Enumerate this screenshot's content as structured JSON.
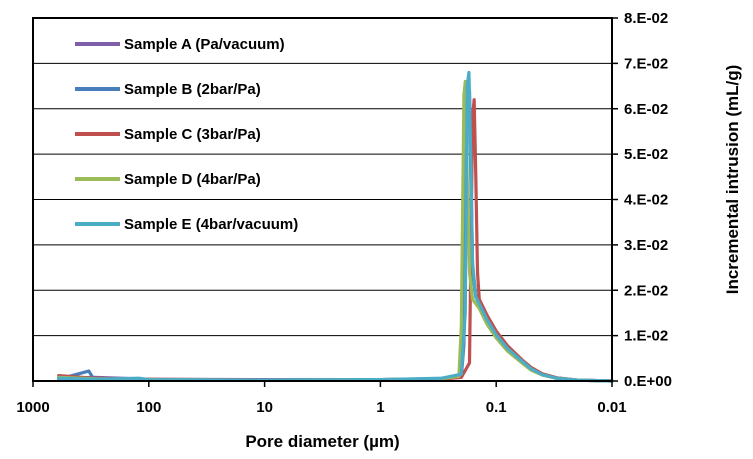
{
  "chart_data": {
    "type": "line",
    "title": "",
    "xlabel": "Pore diameter (µm)",
    "ylabel": "Incremental intrusion (mL/g)",
    "x_scale": "log",
    "x_reversed": true,
    "xlim": [
      1000,
      0.01
    ],
    "ylim": [
      0,
      0.08
    ],
    "x_ticks": [
      1000,
      100,
      10,
      1,
      0.1,
      0.01
    ],
    "x_tick_labels": [
      "1000",
      "100",
      "10",
      "1",
      "0.1",
      "0.01"
    ],
    "y_ticks": [
      0,
      0.01,
      0.02,
      0.03,
      0.04,
      0.05,
      0.06,
      0.07,
      0.08
    ],
    "y_tick_labels": [
      "0.E+00",
      "1.E-02",
      "2.E-02",
      "3.E-02",
      "4.E-02",
      "5.E-02",
      "6.E-02",
      "7.E-02",
      "8.E-02"
    ],
    "y_axis_side": "right",
    "grid": true,
    "legend_position": "top-left",
    "series": [
      {
        "name": "Sample A (Pa/vacuum)",
        "color": "#7f5fa8",
        "points": [
          [
            600,
            0.0005
          ],
          [
            300,
            0.0008
          ],
          [
            100,
            0.0004
          ],
          [
            10,
            0.0003
          ],
          [
            1,
            0.0003
          ],
          [
            0.3,
            0.0005
          ],
          [
            0.2,
            0.001
          ],
          [
            0.19,
            0.008
          ],
          [
            0.18,
            0.06
          ],
          [
            0.17,
            0.064
          ],
          [
            0.165,
            0.045
          ],
          [
            0.16,
            0.025
          ],
          [
            0.15,
            0.019
          ],
          [
            0.14,
            0.0175
          ],
          [
            0.12,
            0.014
          ],
          [
            0.1,
            0.0105
          ],
          [
            0.08,
            0.0075
          ],
          [
            0.06,
            0.0045
          ],
          [
            0.05,
            0.0028
          ],
          [
            0.04,
            0.0015
          ],
          [
            0.03,
            0.0007
          ],
          [
            0.02,
            0.0002
          ],
          [
            0.01,
            0.0
          ]
        ]
      },
      {
        "name": "Sample B (2bar/Pa)",
        "color": "#4a7ebb",
        "points": [
          [
            600,
            0.0004
          ],
          [
            330,
            0.0022
          ],
          [
            300,
            0.0005
          ],
          [
            100,
            0.0003
          ],
          [
            10,
            0.0002
          ],
          [
            1,
            0.0003
          ],
          [
            0.3,
            0.0005
          ],
          [
            0.2,
            0.0012
          ],
          [
            0.19,
            0.01
          ],
          [
            0.18,
            0.058
          ],
          [
            0.17,
            0.061
          ],
          [
            0.165,
            0.042
          ],
          [
            0.16,
            0.024
          ],
          [
            0.15,
            0.0185
          ],
          [
            0.14,
            0.017
          ],
          [
            0.12,
            0.0135
          ],
          [
            0.1,
            0.01
          ],
          [
            0.08,
            0.007
          ],
          [
            0.06,
            0.0042
          ],
          [
            0.05,
            0.0026
          ],
          [
            0.04,
            0.0014
          ],
          [
            0.03,
            0.0006
          ],
          [
            0.02,
            0.0002
          ],
          [
            0.01,
            0.0
          ]
        ]
      },
      {
        "name": "Sample C (3bar/Pa)",
        "color": "#c0504d",
        "points": [
          [
            600,
            0.0012
          ],
          [
            300,
            0.0006
          ],
          [
            100,
            0.0004
          ],
          [
            10,
            0.0002
          ],
          [
            1,
            0.0003
          ],
          [
            0.3,
            0.0004
          ],
          [
            0.2,
            0.0008
          ],
          [
            0.17,
            0.004
          ],
          [
            0.16,
            0.058
          ],
          [
            0.155,
            0.062
          ],
          [
            0.15,
            0.045
          ],
          [
            0.145,
            0.024
          ],
          [
            0.14,
            0.018
          ],
          [
            0.12,
            0.0145
          ],
          [
            0.1,
            0.011
          ],
          [
            0.08,
            0.0078
          ],
          [
            0.06,
            0.0047
          ],
          [
            0.05,
            0.003
          ],
          [
            0.04,
            0.0016
          ],
          [
            0.03,
            0.0007
          ],
          [
            0.02,
            0.0002
          ],
          [
            0.01,
            0.0
          ]
        ]
      },
      {
        "name": "Sample D (4bar/Pa)",
        "color": "#9bbb59",
        "points": [
          [
            600,
            0.0008
          ],
          [
            300,
            0.0005
          ],
          [
            100,
            0.0003
          ],
          [
            10,
            0.0002
          ],
          [
            1,
            0.0003
          ],
          [
            0.3,
            0.0005
          ],
          [
            0.21,
            0.001
          ],
          [
            0.2,
            0.012
          ],
          [
            0.19,
            0.063
          ],
          [
            0.185,
            0.066
          ],
          [
            0.178,
            0.045
          ],
          [
            0.17,
            0.024
          ],
          [
            0.16,
            0.018
          ],
          [
            0.14,
            0.016
          ],
          [
            0.12,
            0.0125
          ],
          [
            0.1,
            0.0095
          ],
          [
            0.08,
            0.0066
          ],
          [
            0.06,
            0.004
          ],
          [
            0.05,
            0.0024
          ],
          [
            0.04,
            0.0013
          ],
          [
            0.03,
            0.0006
          ],
          [
            0.02,
            0.0002
          ],
          [
            0.01,
            0.0
          ]
        ]
      },
      {
        "name": "Sample E (4bar/vacuum)",
        "color": "#4bacc6",
        "points": [
          [
            600,
            0.0006
          ],
          [
            300,
            0.0004
          ],
          [
            120,
            0.0006
          ],
          [
            100,
            0.0003
          ],
          [
            10,
            0.0002
          ],
          [
            1,
            0.0003
          ],
          [
            0.3,
            0.0006
          ],
          [
            0.2,
            0.0015
          ],
          [
            0.185,
            0.015
          ],
          [
            0.178,
            0.065
          ],
          [
            0.172,
            0.068
          ],
          [
            0.166,
            0.05
          ],
          [
            0.16,
            0.026
          ],
          [
            0.15,
            0.0185
          ],
          [
            0.14,
            0.017
          ],
          [
            0.12,
            0.0135
          ],
          [
            0.1,
            0.0102
          ],
          [
            0.08,
            0.0072
          ],
          [
            0.06,
            0.0044
          ],
          [
            0.05,
            0.0027
          ],
          [
            0.04,
            0.0014
          ],
          [
            0.03,
            0.0006
          ],
          [
            0.02,
            0.0002
          ],
          [
            0.01,
            0.0
          ]
        ]
      }
    ]
  }
}
